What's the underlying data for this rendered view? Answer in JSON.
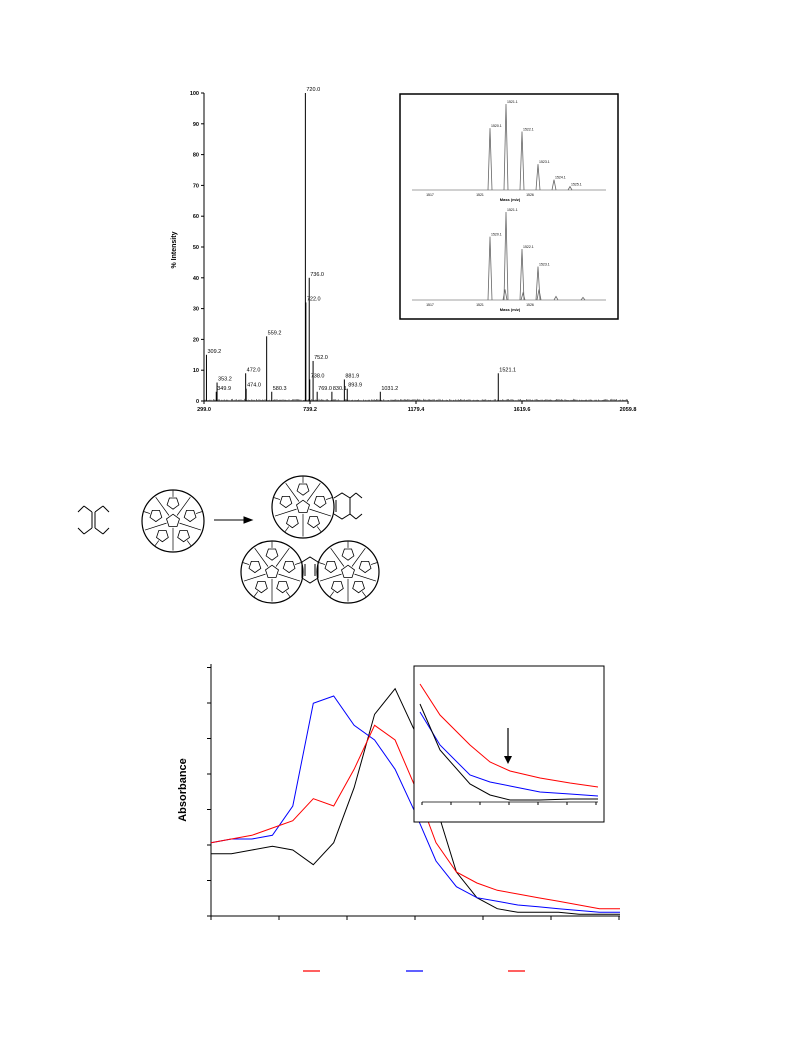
{
  "chart_data": [
    {
      "type": "line",
      "ylabel": "% Intensity",
      "xlabel": "",
      "yticks": [
        "0",
        "10",
        "20",
        "30",
        "40",
        "50",
        "60",
        "70",
        "80",
        "90",
        "100"
      ],
      "ylim": [
        0,
        100
      ],
      "xticks": [
        {
          "value": 299.0,
          "label": "299.0"
        },
        {
          "value": 739.2,
          "label": "739.2"
        },
        {
          "value": 1179.4,
          "label": "1179.4"
        },
        {
          "value": 1619.6,
          "label": "1619.6"
        },
        {
          "value": 2059.8,
          "label": "2059.8"
        }
      ],
      "xlim": [
        299.0,
        2059.8
      ],
      "peaks": [
        {
          "x": 309.2,
          "y": 15,
          "label": "309.2"
        },
        {
          "x": 349.9,
          "y": 3,
          "label": "349.9"
        },
        {
          "x": 353.2,
          "y": 6,
          "label": "353.2"
        },
        {
          "x": 472.0,
          "y": 9,
          "label": "472.0"
        },
        {
          "x": 474.0,
          "y": 4,
          "label": "474.0"
        },
        {
          "x": 559.2,
          "y": 21,
          "label": "559.2"
        },
        {
          "x": 580.3,
          "y": 3,
          "label": "580.3"
        },
        {
          "x": 720.0,
          "y": 100,
          "label": "720.0"
        },
        {
          "x": 722.0,
          "y": 32,
          "label": "722.0"
        },
        {
          "x": 736.0,
          "y": 40,
          "label": "736.0"
        },
        {
          "x": 738.0,
          "y": 7,
          "label": "738.0"
        },
        {
          "x": 752.0,
          "y": 13,
          "label": "752.0"
        },
        {
          "x": 769.0,
          "y": 3,
          "label": "769.0"
        },
        {
          "x": 830.1,
          "y": 3,
          "label": "830.1"
        },
        {
          "x": 881.9,
          "y": 7,
          "label": "881.9"
        },
        {
          "x": 893.9,
          "y": 4,
          "label": "893.9"
        },
        {
          "x": 1031.2,
          "y": 3,
          "label": "1031.2"
        },
        {
          "x": 1521.1,
          "y": 9,
          "label": "1521.1"
        }
      ],
      "inset": {
        "panels": [
          {
            "xlabel": "Mass (m/z)",
            "xticks": [
              "1517",
              "1521",
              "1526"
            ],
            "peaks": [
              {
                "x": 1520.1,
                "y": 0.72,
                "label": "1520.1"
              },
              {
                "x": 1521.1,
                "y": 1.0,
                "label": "1521.1"
              },
              {
                "x": 1522.1,
                "y": 0.68,
                "label": "1522.1"
              },
              {
                "x": 1523.1,
                "y": 0.3,
                "label": "1523.1"
              },
              {
                "x": 1524.1,
                "y": 0.12,
                "label": "1524.1"
              },
              {
                "x": 1525.1,
                "y": 0.04,
                "label": "1525.1"
              }
            ]
          },
          {
            "xlabel": "Mass (m/z)",
            "xticks": [
              "1517",
              "1521",
              "1526"
            ],
            "peaks": [
              {
                "x": 1520.1,
                "y": 0.72,
                "label": "1520.1"
              },
              {
                "x": 1521.1,
                "y": 1.0,
                "label": "1521.1"
              },
              {
                "x": 1522.1,
                "y": 0.58,
                "label": "1522.1"
              },
              {
                "x": 1523.1,
                "y": 0.38,
                "label": "1523.1"
              }
            ]
          }
        ]
      }
    },
    {
      "type": "line",
      "ylabel": "Absorbance",
      "xlabel": "",
      "series": [
        {
          "color": "#000000",
          "y": [
            0.17,
            0.17,
            0.18,
            0.19,
            0.18,
            0.14,
            0.2,
            0.35,
            0.55,
            0.62,
            0.5,
            0.3,
            0.12,
            0.05,
            0.02,
            0.01,
            0.01,
            0.01,
            0.005,
            0.005,
            0.005
          ]
        },
        {
          "color": "#0000ff",
          "y": [
            0.2,
            0.21,
            0.21,
            0.22,
            0.3,
            0.58,
            0.6,
            0.52,
            0.48,
            0.4,
            0.28,
            0.15,
            0.08,
            0.05,
            0.04,
            0.03,
            0.025,
            0.02,
            0.015,
            0.01,
            0.01
          ]
        },
        {
          "color": "#ff0000",
          "y": [
            0.2,
            0.21,
            0.22,
            0.24,
            0.26,
            0.32,
            0.3,
            0.4,
            0.52,
            0.48,
            0.35,
            0.2,
            0.12,
            0.09,
            0.07,
            0.06,
            0.05,
            0.04,
            0.03,
            0.02,
            0.02
          ]
        }
      ],
      "legend": [
        {
          "color": "#ff0000"
        },
        {
          "color": "#0000ff"
        },
        {
          "color": "#ff0000"
        }
      ],
      "inset_note": "arrow marks a shoulder in the zoomed region"
    }
  ]
}
